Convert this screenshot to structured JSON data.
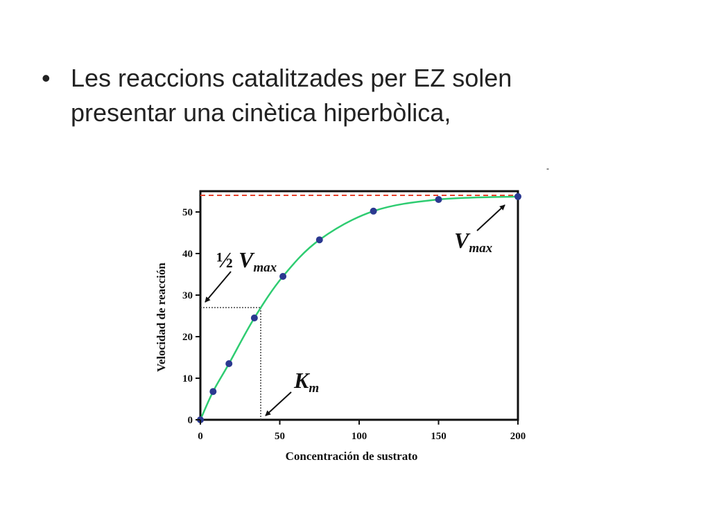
{
  "slide": {
    "bullet": "•",
    "text_line1": "Les reaccions catalitzades per EZ solen",
    "text_line2": "presentar una cinètica hiperbòlica,",
    "stray_mark": "-"
  },
  "chart_data": {
    "type": "scatter",
    "title": "",
    "xlabel": "Concentración de sustrato",
    "ylabel": "Velocidad de reacción",
    "xlim": [
      0,
      200
    ],
    "ylim": [
      0,
      55
    ],
    "xticks": [
      0,
      50,
      100,
      150,
      200
    ],
    "yticks": [
      0,
      10,
      20,
      30,
      40,
      50
    ],
    "vmax": 54,
    "km": 38,
    "half_vmax": 27,
    "points": [
      {
        "x": 0,
        "y": 0
      },
      {
        "x": 8,
        "y": 6.8
      },
      {
        "x": 18,
        "y": 13.5
      },
      {
        "x": 34,
        "y": 24.5
      },
      {
        "x": 52,
        "y": 34.5
      },
      {
        "x": 75,
        "y": 43.3
      },
      {
        "x": 109,
        "y": 50.2
      },
      {
        "x": 150,
        "y": 53
      },
      {
        "x": 200,
        "y": 53.7
      }
    ],
    "annotations": {
      "vmax_label_main": "V",
      "vmax_label_sub": "max",
      "half_label_frac": "½",
      "half_label_main": "V",
      "half_label_sub": "max",
      "km_label_main": "K",
      "km_label_sub": "m"
    },
    "colors": {
      "curve": "#2ecc71",
      "points": "#2b3990",
      "vmax_line": "#e8402a",
      "guides": "#444444",
      "frame": "#111111"
    }
  }
}
